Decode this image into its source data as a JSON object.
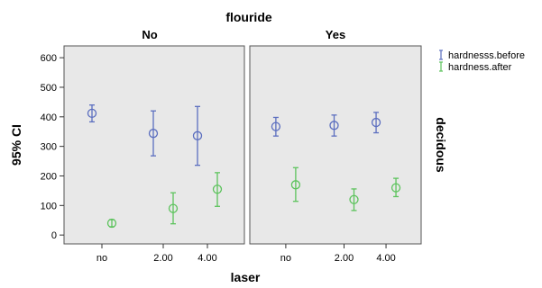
{
  "chart_data": {
    "type": "scatter",
    "subtype": "error-bar",
    "title": "flouride",
    "xlabel": "laser",
    "ylabel": "95% CI",
    "right_strip_label": "decidous",
    "panels": [
      {
        "label": "No",
        "points": {
          "hardnesss.before": [
            {
              "x": "no",
              "mean": 412,
              "low": 383,
              "high": 440
            },
            {
              "x": "2.00",
              "mean": 344,
              "low": 268,
              "high": 420
            },
            {
              "x": "4.00",
              "mean": 336,
              "low": 236,
              "high": 435
            }
          ],
          "hardness.after": [
            {
              "x": "no",
              "mean": 40,
              "low": 28,
              "high": 52
            },
            {
              "x": "2.00",
              "mean": 90,
              "low": 38,
              "high": 143
            },
            {
              "x": "4.00",
              "mean": 155,
              "low": 97,
              "high": 211
            }
          ]
        }
      },
      {
        "label": "Yes",
        "points": {
          "hardnesss.before": [
            {
              "x": "no",
              "mean": 367,
              "low": 335,
              "high": 398
            },
            {
              "x": "2.00",
              "mean": 371,
              "low": 335,
              "high": 406
            },
            {
              "x": "4.00",
              "mean": 381,
              "low": 346,
              "high": 415
            }
          ],
          "hardness.after": [
            {
              "x": "no",
              "mean": 170,
              "low": 114,
              "high": 228
            },
            {
              "x": "2.00",
              "mean": 120,
              "low": 83,
              "high": 156
            },
            {
              "x": "4.00",
              "mean": 160,
              "low": 130,
              "high": 192
            }
          ]
        }
      }
    ],
    "categories": [
      "no",
      "2.00",
      "4.00"
    ],
    "yticks": [
      0,
      100,
      200,
      300,
      400,
      500,
      600
    ],
    "ylim": [
      -30,
      640
    ],
    "legend": {
      "placement": "top-right",
      "entries": [
        {
          "name": "hardnesss.before",
          "color": "#5b6ebf"
        },
        {
          "name": "hardness.after",
          "color": "#5cc35c"
        }
      ]
    },
    "panel_background": "#e8e8e8",
    "grid": false
  }
}
